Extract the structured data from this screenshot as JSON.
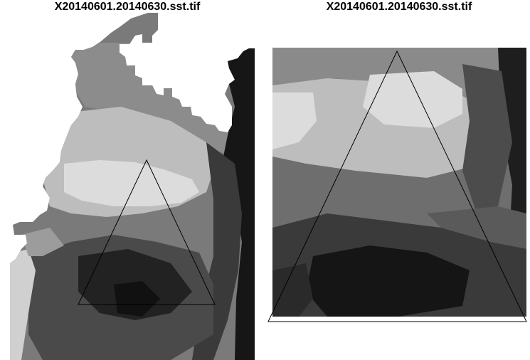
{
  "panels": [
    {
      "title": "X20140601.20140630.sst.tif"
    },
    {
      "title": "X20140601.20140630.sst.tif"
    }
  ],
  "colors": {
    "background": "#ffffff",
    "outline": "#000000",
    "grayscale_ramp": [
      "#111111",
      "#3a3a3a",
      "#5a5a5a",
      "#7a7a7a",
      "#9c9c9c",
      "#bdbdbd",
      "#dcdcdc"
    ]
  }
}
